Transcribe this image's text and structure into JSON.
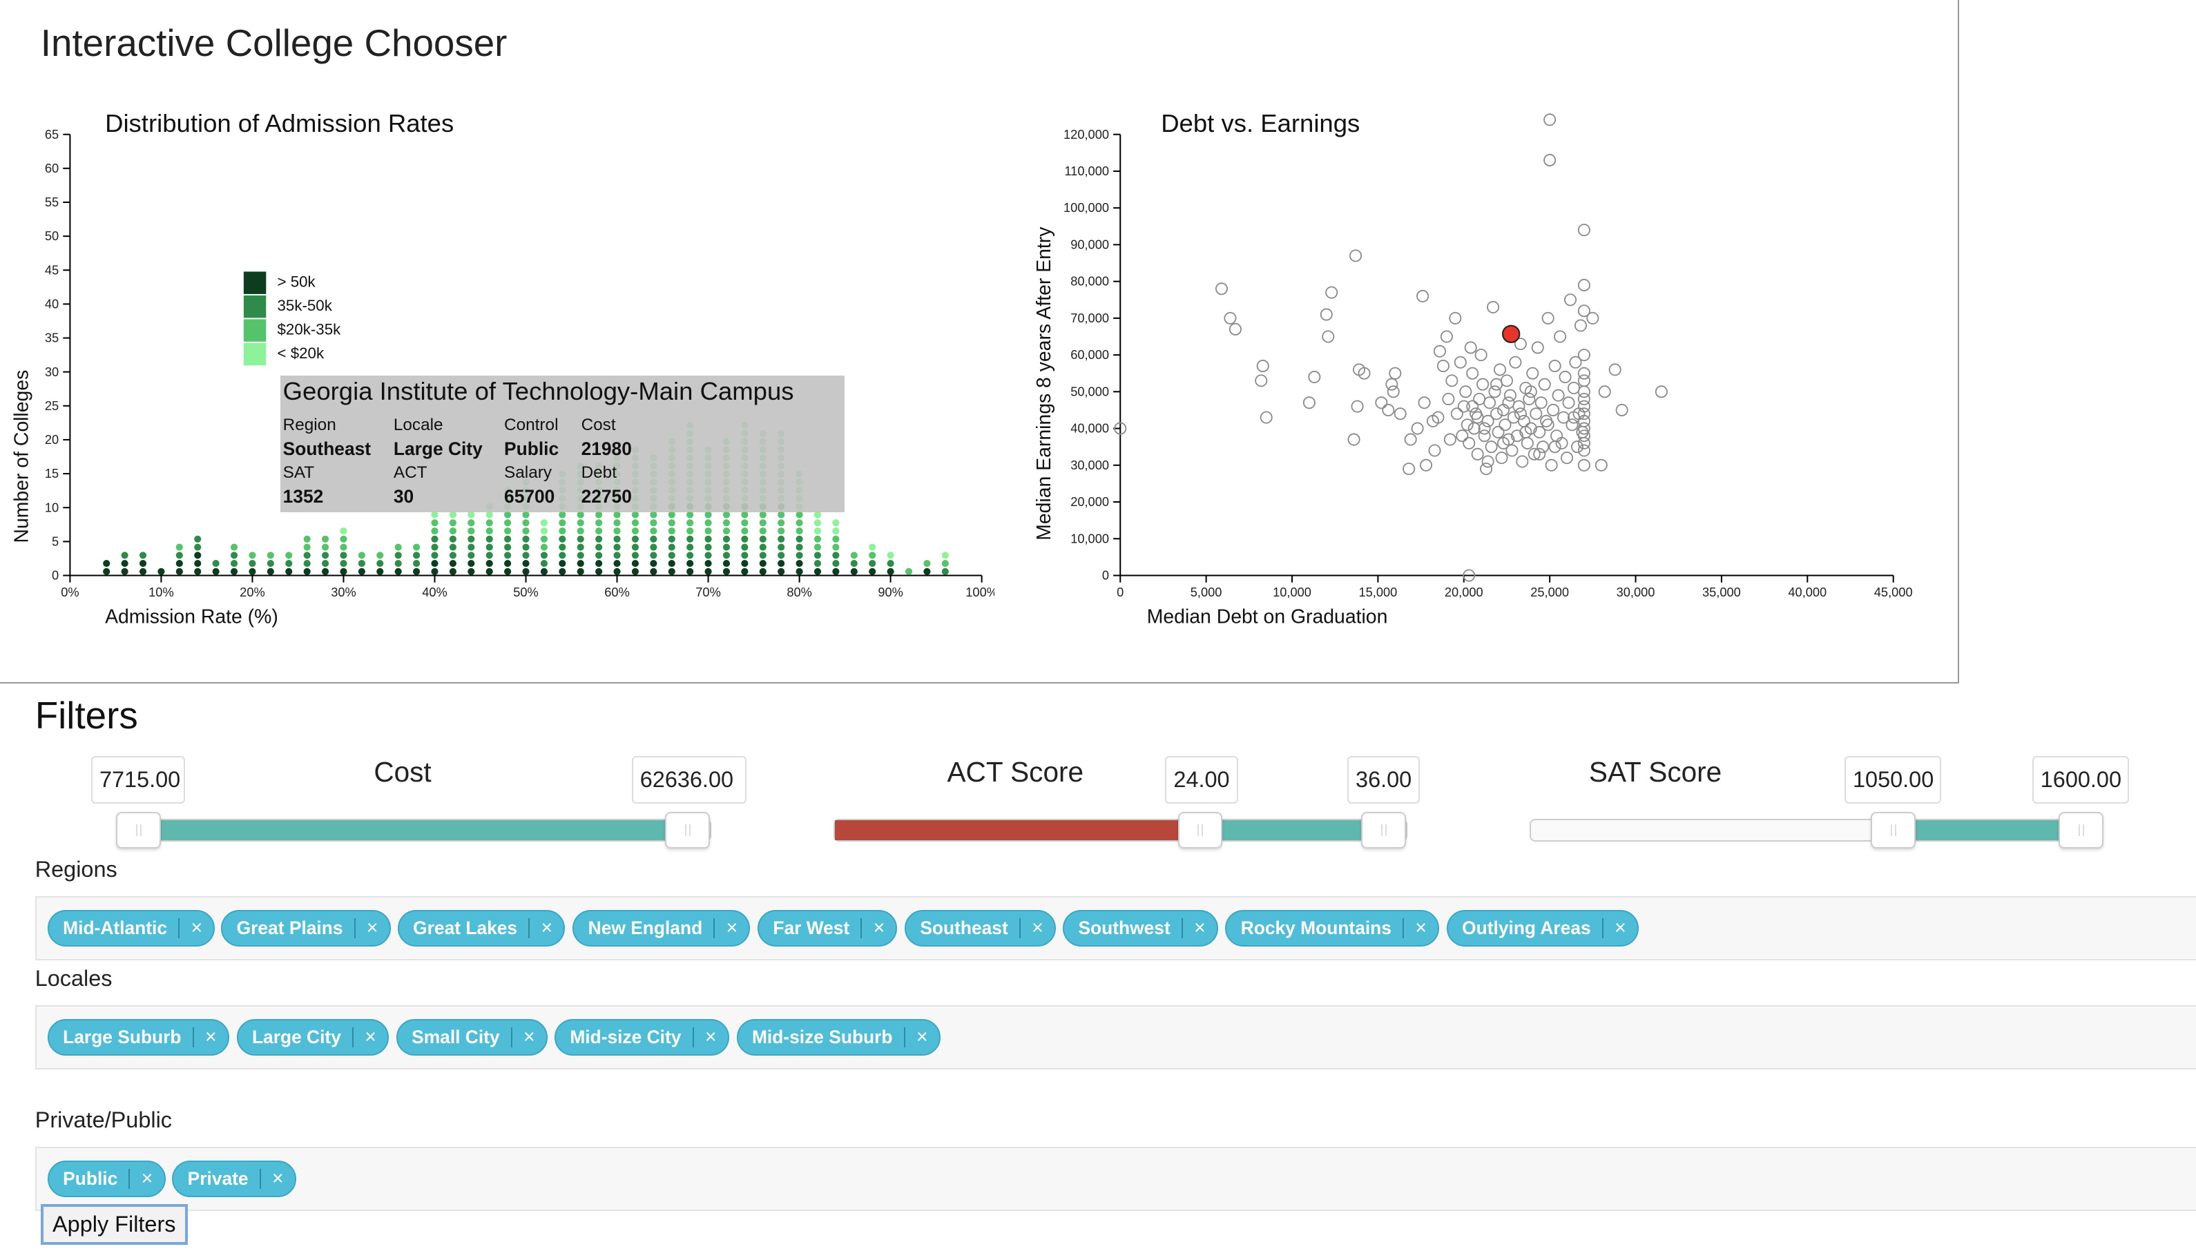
{
  "app_title": "Interactive College Chooser",
  "histogram": {
    "title": "Distribution of Admission Rates",
    "legend": [
      {
        "label": "> 50k",
        "color": "#0b3d1e"
      },
      {
        "label": "35k-50k",
        "color": "#2e8b4a"
      },
      {
        "label": "$20k-35k",
        "color": "#55c36b"
      },
      {
        "label": "< $20k",
        "color": "#8ef29a"
      }
    ]
  },
  "tooltip": {
    "name": "Georgia Institute of Technology-Main Campus",
    "labels": {
      "region": "Region",
      "locale": "Locale",
      "control": "Control",
      "cost": "Cost",
      "sat": "SAT",
      "act": "ACT",
      "salary": "Salary",
      "debt": "Debt"
    },
    "values": {
      "region": "Southeast",
      "locale": "Large City",
      "control": "Public",
      "cost": "21980",
      "sat": "1352",
      "act": "30",
      "salary": "65700",
      "debt": "22750"
    }
  },
  "scatter": {
    "title": "Debt vs. Earnings"
  },
  "chart_data": [
    {
      "type": "bar",
      "title": "Distribution of Admission Rates",
      "xlabel": "Admission Rate (%)",
      "ylabel": "Number of Colleges",
      "xlim": [
        0,
        100
      ],
      "ylim": [
        0,
        65
      ],
      "x_ticks": [
        "0%",
        "10%",
        "20%",
        "30%",
        "40%",
        "50%",
        "60%",
        "70%",
        "80%",
        "90%",
        "100%"
      ],
      "y_ticks": [
        0,
        5,
        10,
        15,
        20,
        25,
        30,
        35,
        40,
        45,
        50,
        55,
        60,
        65
      ],
      "legend_position": "top-left",
      "categories": [
        4,
        6,
        8,
        10,
        12,
        14,
        16,
        18,
        20,
        22,
        24,
        26,
        28,
        30,
        32,
        34,
        36,
        38,
        40,
        42,
        44,
        46,
        48,
        50,
        52,
        54,
        56,
        58,
        60,
        62,
        64,
        66,
        68,
        70,
        72,
        74,
        76,
        78,
        80,
        82,
        84,
        86,
        88,
        90,
        92,
        94,
        96
      ],
      "series": [
        {
          "name": "> 50k",
          "values": [
            2,
            2,
            2,
            1,
            2,
            3,
            1,
            1,
            1,
            1,
            1,
            1,
            1,
            1,
            1,
            1,
            1,
            1,
            2,
            2,
            2,
            2,
            2,
            2,
            1,
            2,
            2,
            2,
            2,
            2,
            2,
            2,
            2,
            2,
            2,
            2,
            2,
            2,
            2,
            1,
            1,
            1,
            1,
            1,
            0,
            1,
            0
          ]
        },
        {
          "name": "35k-50k",
          "values": [
            0,
            1,
            1,
            0,
            1,
            2,
            1,
            2,
            1,
            1,
            1,
            2,
            2,
            2,
            1,
            1,
            2,
            2,
            3,
            3,
            3,
            3,
            3,
            3,
            2,
            3,
            3,
            3,
            3,
            3,
            3,
            3,
            3,
            3,
            3,
            3,
            3,
            3,
            3,
            2,
            2,
            1,
            1,
            1,
            0,
            0,
            1
          ]
        },
        {
          "name": "$20k-35k",
          "values": [
            0,
            0,
            0,
            0,
            1,
            0,
            0,
            1,
            1,
            1,
            1,
            2,
            2,
            2,
            1,
            1,
            1,
            1,
            2,
            2,
            2,
            2,
            3,
            3,
            2,
            3,
            3,
            3,
            3,
            3,
            3,
            4,
            4,
            4,
            4,
            4,
            4,
            4,
            3,
            2,
            2,
            1,
            1,
            0,
            1,
            1,
            1
          ]
        },
        {
          "name": "< $20k",
          "values": [
            0,
            0,
            0,
            0,
            0,
            0,
            0,
            0,
            0,
            0,
            0,
            0,
            0,
            1,
            0,
            0,
            0,
            0,
            1,
            1,
            1,
            2,
            3,
            4,
            2,
            5,
            6,
            6,
            7,
            8,
            7,
            8,
            10,
            7,
            8,
            10,
            9,
            9,
            5,
            3,
            2,
            0,
            1,
            1,
            0,
            0,
            1
          ]
        }
      ]
    },
    {
      "type": "scatter",
      "title": "Debt vs. Earnings",
      "xlabel": "Median Debt on Graduation",
      "ylabel": "Median Earnings 8 years After Entry",
      "xlim": [
        0,
        45000
      ],
      "ylim": [
        0,
        120000
      ],
      "x_ticks": [
        "0",
        "5,000",
        "10,000",
        "15,000",
        "20,000",
        "25,000",
        "30,000",
        "35,000",
        "40,000",
        "45,000"
      ],
      "y_ticks": [
        "0",
        "10,000",
        "20,000",
        "30,000",
        "40,000",
        "50,000",
        "60,000",
        "70,000",
        "80,000",
        "90,000",
        "100,000",
        "110,000",
        "120,000"
      ],
      "highlighted": {
        "x": 22750,
        "y": 65700
      },
      "points": [
        [
          0,
          40000
        ],
        [
          5900,
          78000
        ],
        [
          6400,
          70000
        ],
        [
          6700,
          67000
        ],
        [
          8300,
          57000
        ],
        [
          8200,
          53000
        ],
        [
          8500,
          43000
        ],
        [
          11000,
          47000
        ],
        [
          11300,
          54000
        ],
        [
          12000,
          71000
        ],
        [
          12100,
          65000
        ],
        [
          12300,
          77000
        ],
        [
          13600,
          37000
        ],
        [
          13800,
          46000
        ],
        [
          13900,
          56000
        ],
        [
          14200,
          55000
        ],
        [
          13700,
          87000
        ],
        [
          15200,
          47000
        ],
        [
          15600,
          45000
        ],
        [
          15800,
          52000
        ],
        [
          15900,
          50000
        ],
        [
          16000,
          55000
        ],
        [
          16300,
          44000
        ],
        [
          16800,
          29000
        ],
        [
          16900,
          37000
        ],
        [
          17300,
          40000
        ],
        [
          17600,
          76000
        ],
        [
          17700,
          47000
        ],
        [
          17800,
          30000
        ],
        [
          18200,
          42000
        ],
        [
          18500,
          43000
        ],
        [
          18300,
          34000
        ],
        [
          18600,
          61000
        ],
        [
          18800,
          57000
        ],
        [
          19000,
          65000
        ],
        [
          19100,
          48000
        ],
        [
          19200,
          37000
        ],
        [
          19300,
          53000
        ],
        [
          19500,
          70000
        ],
        [
          19600,
          44000
        ],
        [
          19800,
          58000
        ],
        [
          20000,
          46000
        ],
        [
          20100,
          50000
        ],
        [
          20200,
          41000
        ],
        [
          20300,
          36000
        ],
        [
          20400,
          62000
        ],
        [
          20500,
          55000
        ],
        [
          20600,
          40000
        ],
        [
          20700,
          44000
        ],
        [
          20800,
          33000
        ],
        [
          20900,
          48000
        ],
        [
          21000,
          60000
        ],
        [
          21100,
          52000
        ],
        [
          21200,
          38000
        ],
        [
          21300,
          29000
        ],
        [
          21400,
          42000
        ],
        [
          21500,
          47000
        ],
        [
          21600,
          35000
        ],
        [
          21700,
          73000
        ],
        [
          21800,
          50000
        ],
        [
          21900,
          44000
        ],
        [
          22000,
          39000
        ],
        [
          22100,
          56000
        ],
        [
          22200,
          32000
        ],
        [
          22300,
          45000
        ],
        [
          22400,
          41000
        ],
        [
          22500,
          53000
        ],
        [
          22600,
          37000
        ],
        [
          22700,
          49000
        ],
        [
          22800,
          34000
        ],
        [
          22900,
          43000
        ],
        [
          23000,
          58000
        ],
        [
          23100,
          38000
        ],
        [
          23200,
          46000
        ],
        [
          23300,
          63000
        ],
        [
          23400,
          31000
        ],
        [
          23500,
          42000
        ],
        [
          23600,
          51000
        ],
        [
          23700,
          36000
        ],
        [
          23800,
          48000
        ],
        [
          23900,
          40000
        ],
        [
          24000,
          55000
        ],
        [
          24100,
          33000
        ],
        [
          24200,
          44000
        ],
        [
          24300,
          62000
        ],
        [
          24400,
          39000
        ],
        [
          24500,
          47000
        ],
        [
          24600,
          35000
        ],
        [
          24700,
          52000
        ],
        [
          24800,
          42000
        ],
        [
          24900,
          70000
        ],
        [
          25000,
          124000
        ],
        [
          25000,
          113000
        ],
        [
          25100,
          30000
        ],
        [
          25200,
          45000
        ],
        [
          25300,
          57000
        ],
        [
          25400,
          38000
        ],
        [
          25500,
          49000
        ],
        [
          25600,
          65000
        ],
        [
          25700,
          36000
        ],
        [
          25800,
          43000
        ],
        [
          25900,
          54000
        ],
        [
          26000,
          32000
        ],
        [
          26100,
          47000
        ],
        [
          26200,
          75000
        ],
        [
          26300,
          41000
        ],
        [
          26400,
          51000
        ],
        [
          26500,
          58000
        ],
        [
          26600,
          35000
        ],
        [
          26700,
          44000
        ],
        [
          26800,
          68000
        ],
        [
          26900,
          39000
        ],
        [
          27000,
          94000
        ],
        [
          27000,
          79000
        ],
        [
          27000,
          72000
        ],
        [
          27000,
          60000
        ],
        [
          27000,
          55000
        ],
        [
          27000,
          50000
        ],
        [
          27000,
          46000
        ],
        [
          27000,
          42000
        ],
        [
          27000,
          38000
        ],
        [
          27000,
          34000
        ],
        [
          27000,
          30000
        ],
        [
          27000,
          53000
        ],
        [
          27000,
          48000
        ],
        [
          27000,
          44000
        ],
        [
          27000,
          40000
        ],
        [
          27000,
          36000
        ],
        [
          27500,
          70000
        ],
        [
          28000,
          30000
        ],
        [
          28200,
          50000
        ],
        [
          28800,
          56000
        ],
        [
          29200,
          45000
        ],
        [
          31500,
          50000
        ],
        [
          20300,
          0
        ],
        [
          21200,
          40000
        ],
        [
          22300,
          36000
        ],
        [
          23300,
          44000
        ],
        [
          24400,
          33000
        ],
        [
          20500,
          46000
        ],
        [
          21900,
          52000
        ],
        [
          23600,
          39000
        ],
        [
          24900,
          41000
        ],
        [
          19900,
          38000
        ],
        [
          22600,
          47000
        ],
        [
          25300,
          35000
        ],
        [
          26400,
          43000
        ],
        [
          21400,
          31000
        ],
        [
          23900,
          50000
        ],
        [
          20800,
          43000
        ]
      ]
    }
  ],
  "filters": {
    "title": "Filters",
    "cost": {
      "label": "Cost",
      "min": "7715.00",
      "max": "62636.00"
    },
    "act": {
      "label": "ACT Score",
      "min": "24.00",
      "max": "36.00"
    },
    "sat": {
      "label": "SAT Score",
      "min": "1050.00",
      "max": "1600.00"
    },
    "regions_label": "Regions",
    "regions": [
      "Mid-Atlantic",
      "Great Plains",
      "Great Lakes",
      "New England",
      "Far West",
      "Southeast",
      "Southwest",
      "Rocky Mountains",
      "Outlying Areas"
    ],
    "locales_label": "Locales",
    "locales": [
      "Large Suburb",
      "Large City",
      "Small City",
      "Mid-size City",
      "Mid-size Suburb"
    ],
    "control_label": "Private/Public",
    "control": [
      "Public",
      "Private"
    ],
    "remove_glyph": "×",
    "apply_label": "Apply Filters"
  },
  "colors": {
    "slider_fill": "#5fb8ad",
    "slider_excluded": "#b8473b",
    "tag_bg": "#4fbcd8"
  }
}
